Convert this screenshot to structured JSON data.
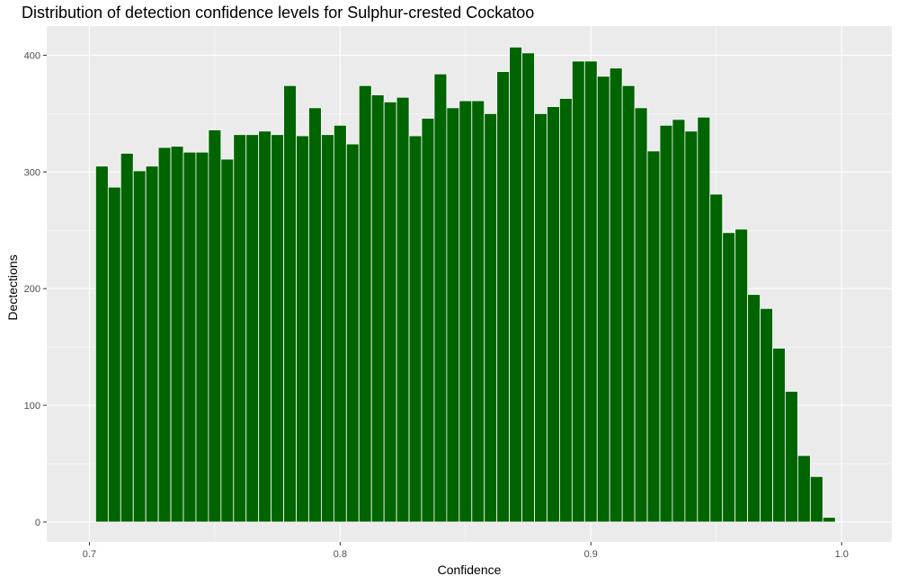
{
  "chart_data": {
    "type": "bar",
    "title": "Distribution of detection confidence levels for Sulphur-crested Cockatoo",
    "xlabel": "Confidence",
    "ylabel": "Dectections",
    "bin_width": 0.005,
    "x": [
      0.705,
      0.71,
      0.715,
      0.72,
      0.725,
      0.73,
      0.735,
      0.74,
      0.745,
      0.75,
      0.755,
      0.76,
      0.765,
      0.77,
      0.775,
      0.78,
      0.785,
      0.79,
      0.795,
      0.8,
      0.805,
      0.81,
      0.815,
      0.82,
      0.825,
      0.83,
      0.835,
      0.84,
      0.845,
      0.85,
      0.855,
      0.86,
      0.865,
      0.87,
      0.875,
      0.88,
      0.885,
      0.89,
      0.895,
      0.9,
      0.905,
      0.91,
      0.915,
      0.92,
      0.925,
      0.93,
      0.935,
      0.94,
      0.945,
      0.95,
      0.955,
      0.96,
      0.965,
      0.97,
      0.975,
      0.98,
      0.985,
      0.99,
      0.995
    ],
    "values": [
      305,
      287,
      316,
      301,
      305,
      321,
      322,
      317,
      317,
      336,
      311,
      332,
      332,
      335,
      332,
      374,
      331,
      355,
      332,
      340,
      324,
      374,
      366,
      360,
      364,
      331,
      346,
      384,
      355,
      361,
      361,
      350,
      386,
      407,
      402,
      350,
      356,
      363,
      395,
      395,
      382,
      389,
      374,
      355,
      318,
      340,
      345,
      335,
      347,
      281,
      248,
      251,
      195,
      183,
      149,
      112,
      57,
      39,
      4
    ],
    "xlim": [
      0.683,
      1.02
    ],
    "ylim": [
      -17,
      425
    ],
    "x_ticks": [
      0.7,
      0.8,
      0.9,
      1.0
    ],
    "x_tick_labels": [
      "0.7",
      "0.8",
      "0.9",
      "1.0"
    ],
    "y_ticks": [
      0,
      100,
      200,
      300,
      400
    ],
    "y_tick_labels": [
      "0",
      "100",
      "200",
      "300",
      "400"
    ],
    "grid": true,
    "colors": {
      "bar_fill": "#006400",
      "bar_outline": "#ffffff",
      "panel": "#ebebeb",
      "grid": "#ffffff",
      "tick_text": "#4d4d4d"
    }
  }
}
